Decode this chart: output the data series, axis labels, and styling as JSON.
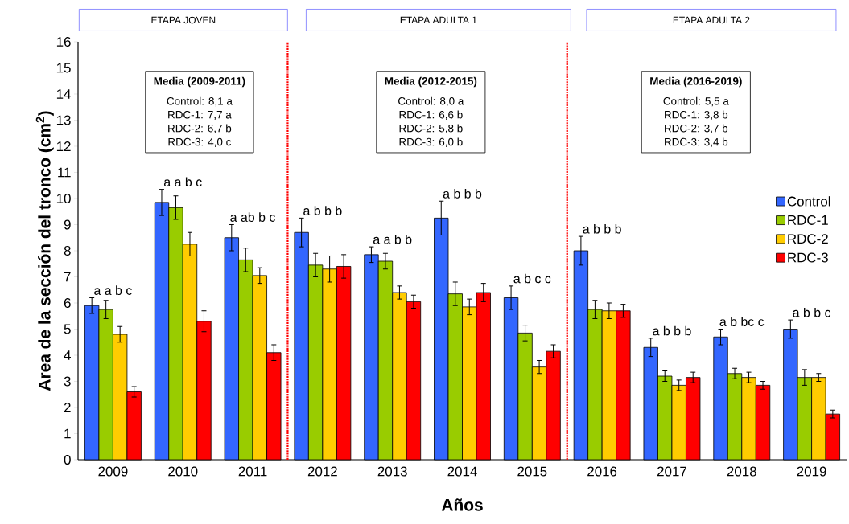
{
  "chart_data": {
    "type": "bar",
    "xlabel": "Años",
    "ylabel": "Area de la sección del tronco (cm$^{2}$)",
    "categories": [
      "2009",
      "2010",
      "2011",
      "2012",
      "2013",
      "2014",
      "2015",
      "2016",
      "2017",
      "2018",
      "2019"
    ],
    "series": [
      {
        "name": "Control",
        "color": "#3366ff",
        "values": [
          5.9,
          9.85,
          8.5,
          8.7,
          7.85,
          9.25,
          6.2,
          8.0,
          4.3,
          4.7,
          5.0
        ],
        "errors": [
          0.3,
          0.5,
          0.5,
          0.55,
          0.3,
          0.65,
          0.45,
          0.55,
          0.35,
          0.3,
          0.35
        ]
      },
      {
        "name": "RDC-1",
        "color": "#99cc00",
        "values": [
          5.75,
          9.65,
          7.65,
          7.45,
          7.6,
          6.35,
          4.85,
          5.75,
          3.2,
          3.3,
          3.15
        ],
        "errors": [
          0.35,
          0.45,
          0.45,
          0.45,
          0.3,
          0.45,
          0.3,
          0.35,
          0.2,
          0.2,
          0.3
        ]
      },
      {
        "name": "RDC-2",
        "color": "#ffcc00",
        "values": [
          4.8,
          8.25,
          7.05,
          7.3,
          6.4,
          5.85,
          3.55,
          5.7,
          2.85,
          3.15,
          3.15
        ],
        "errors": [
          0.3,
          0.45,
          0.3,
          0.5,
          0.25,
          0.3,
          0.25,
          0.3,
          0.2,
          0.2,
          0.15
        ]
      },
      {
        "name": "RDC-3",
        "color": "#ff0000",
        "values": [
          2.6,
          5.3,
          4.1,
          7.4,
          6.05,
          6.4,
          4.15,
          5.7,
          3.15,
          2.85,
          1.75
        ],
        "errors": [
          0.2,
          0.4,
          0.3,
          0.45,
          0.25,
          0.35,
          0.25,
          0.25,
          0.2,
          0.15,
          0.15
        ]
      }
    ],
    "ylim": [
      0,
      16
    ],
    "yticks": [
      0,
      1,
      2,
      3,
      4,
      5,
      6,
      7,
      8,
      9,
      10,
      11,
      12,
      13,
      14,
      15,
      16
    ],
    "grid": false,
    "legend": "right",
    "annotations": [
      "ETAPA JOVEN",
      "ETAPA ADULTA 1",
      "ETAPA ADULTA 2",
      "**Media (2009-2011)**",
      "Control:  8,1  a",
      "RDC-1:  7,7  a",
      "RDC-2:  6,7  b",
      "RDC-3:  4,0  c",
      "**Media (2012-2015)**",
      "Control:  8,0 a",
      "RDC-1:  6,6  b",
      "RDC-2:  5,8  b",
      "RDC-3:  6,0  b",
      "**Media (2016-2019)**",
      "Control:  5,5 a",
      "RDC-1:  3,8  b",
      "RDC-2:  3,7  b",
      "RDC-3:  3,4  b",
      "a a b c",
      "a a b c",
      "a ab b c",
      "a b b b",
      "a a b b",
      "a b b b",
      "a b c c",
      "a b b b",
      "a b b b",
      "a b bc c",
      "a b b c"
    ]
  }
}
